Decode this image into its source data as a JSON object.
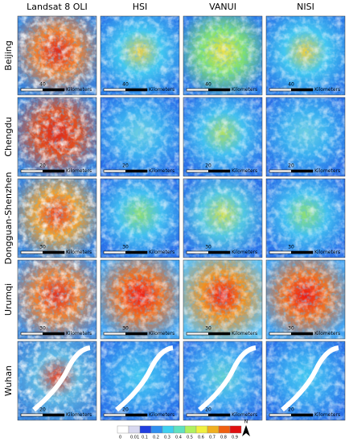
{
  "columns": [
    "Landsat 8 OLI",
    "HSI",
    "VANUI",
    "NISI"
  ],
  "rows": [
    {
      "label": "Beijing",
      "scale": "40"
    },
    {
      "label": "Chengdu",
      "scale": "20"
    },
    {
      "label": "Dongguan-Shenzhen",
      "scale": "30"
    },
    {
      "label": "Urumqi",
      "scale": "30"
    },
    {
      "label": "Wuhan",
      "scale": "20"
    }
  ],
  "scale_unit": "Kilometers",
  "colorbar": {
    "labels": [
      "0",
      "0.01",
      "0.1",
      "0.2",
      "0.3",
      "0.4",
      "0.5",
      "0.6",
      "0.7",
      "0.8",
      "0.9"
    ],
    "colors": [
      "#ffffff",
      "#d8d8f0",
      "#1f3fe0",
      "#2f8ff0",
      "#3fcff0",
      "#5fe0c0",
      "#b0f060",
      "#f0f040",
      "#f0b020",
      "#f06010",
      "#e01010"
    ]
  },
  "north": "N"
}
